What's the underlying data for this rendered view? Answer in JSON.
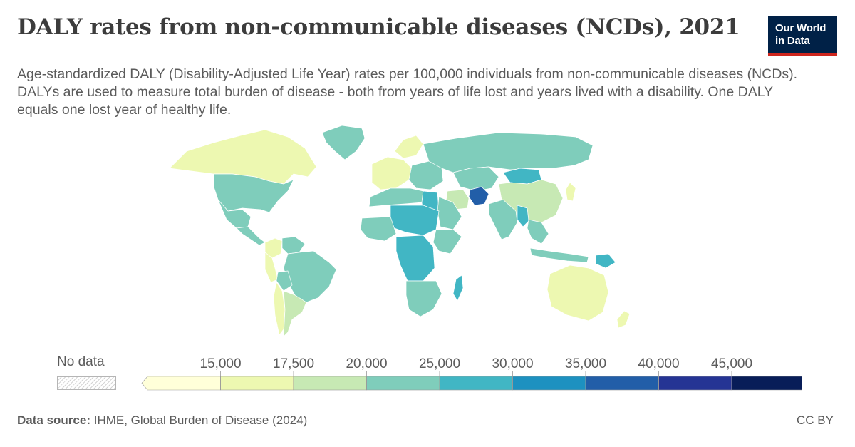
{
  "header": {
    "title": "DALY rates from non-communicable diseases (NCDs), 2021",
    "subtitle": "Age-standardized DALY (Disability-Adjusted Life Year) rates per 100,000 individuals from non-communicable diseases (NCDs). DALYs are used to measure total burden of disease - both from years of life lost and years lived with a disability. One DALY equals one lost year of healthy life.",
    "logo_line1": "Our World",
    "logo_line2": "in Data"
  },
  "legend": {
    "no_data_label": "No data",
    "tick_labels": [
      "15,000",
      "17,500",
      "20,000",
      "25,000",
      "30,000",
      "35,000",
      "40,000",
      "45,000"
    ],
    "bin_colors": [
      "#ffffd9",
      "#edf8b1",
      "#c7e9b4",
      "#7fcdbb",
      "#41b6c4",
      "#1d91c0",
      "#225ea8",
      "#253494",
      "#081d58"
    ]
  },
  "footer": {
    "source_label": "Data source:",
    "source_text": "IHME, Global Burden of Disease (2024)",
    "license": "CC BY"
  },
  "map_regions": [
    {
      "name": "Canada",
      "color": "#edf8b1"
    },
    {
      "name": "Greenland",
      "color": "#7fcdbb"
    },
    {
      "name": "United States",
      "color": "#7fcdbb"
    },
    {
      "name": "Mexico",
      "color": "#7fcdbb"
    },
    {
      "name": "Central America",
      "color": "#7fcdbb"
    },
    {
      "name": "Colombia",
      "color": "#edf8b1"
    },
    {
      "name": "Venezuela",
      "color": "#7fcdbb"
    },
    {
      "name": "Peru",
      "color": "#edf8b1"
    },
    {
      "name": "Brazil",
      "color": "#7fcdbb"
    },
    {
      "name": "Bolivia",
      "color": "#7fcdbb"
    },
    {
      "name": "Chile",
      "color": "#edf8b1"
    },
    {
      "name": "Argentina",
      "color": "#c7e9b4"
    },
    {
      "name": "Western Europe",
      "color": "#edf8b1"
    },
    {
      "name": "Scandinavia",
      "color": "#edf8b1"
    },
    {
      "name": "Eastern Europe",
      "color": "#7fcdbb"
    },
    {
      "name": "Russia",
      "color": "#7fcdbb"
    },
    {
      "name": "Kazakhstan",
      "color": "#7fcdbb"
    },
    {
      "name": "Mongolia",
      "color": "#41b6c4"
    },
    {
      "name": "China",
      "color": "#c7e9b4"
    },
    {
      "name": "Japan",
      "color": "#edf8b1"
    },
    {
      "name": "Afghanistan",
      "color": "#225ea8"
    },
    {
      "name": "Iran",
      "color": "#c7e9b4"
    },
    {
      "name": "India",
      "color": "#7fcdbb"
    },
    {
      "name": "Myanmar",
      "color": "#41b6c4"
    },
    {
      "name": "Southeast Asia",
      "color": "#7fcdbb"
    },
    {
      "name": "Indonesia",
      "color": "#7fcdbb"
    },
    {
      "name": "Papua New Guinea",
      "color": "#41b6c4"
    },
    {
      "name": "Australia",
      "color": "#edf8b1"
    },
    {
      "name": "New Zealand",
      "color": "#edf8b1"
    },
    {
      "name": "North Africa",
      "color": "#7fcdbb"
    },
    {
      "name": "Egypt",
      "color": "#41b6c4"
    },
    {
      "name": "Saudi Arabia",
      "color": "#7fcdbb"
    },
    {
      "name": "Sahel",
      "color": "#41b6c4"
    },
    {
      "name": "West Africa",
      "color": "#7fcdbb"
    },
    {
      "name": "Central Africa",
      "color": "#41b6c4"
    },
    {
      "name": "Horn of Africa",
      "color": "#7fcdbb"
    },
    {
      "name": "Southern Africa",
      "color": "#7fcdbb"
    },
    {
      "name": "Madagascar",
      "color": "#41b6c4"
    }
  ]
}
